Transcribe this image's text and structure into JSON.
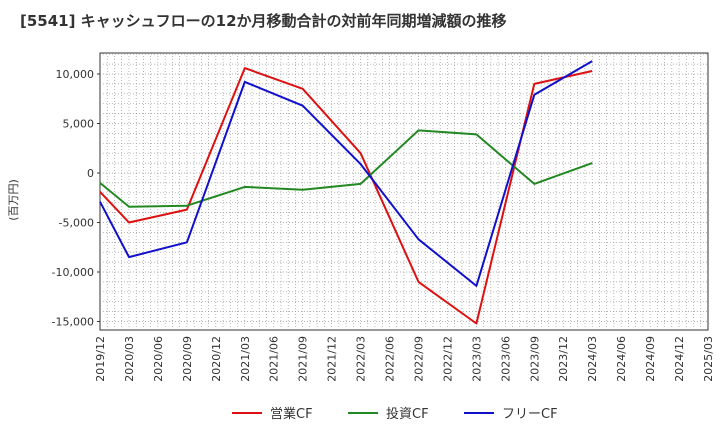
{
  "chart_data": {
    "type": "line",
    "title": "[5541]  キャッシュフローの12か月移動合計の対前年同期増減額の推移",
    "ylabel": "(百万円)",
    "xlabel": "",
    "ylim": [
      -16000,
      12000
    ],
    "grid": true,
    "legend_position": "bottom",
    "categories": [
      "2019/12",
      "2020/03",
      "2020/06",
      "2020/09",
      "2020/12",
      "2021/03",
      "2021/06",
      "2021/09",
      "2021/12",
      "2022/03",
      "2022/06",
      "2022/09",
      "2022/12",
      "2023/03",
      "2023/06",
      "2023/09",
      "2023/12",
      "2024/03",
      "2024/06",
      "2024/09",
      "2024/12",
      "2025/03"
    ],
    "y_ticks": [
      10000,
      5000,
      0,
      -5000,
      -10000,
      -15000
    ],
    "y_tick_labels": [
      "10,000",
      "5,000",
      "0",
      "-5,000",
      "-10,000",
      "-15,000"
    ],
    "series": [
      {
        "name": "営業CF",
        "color": "#dd1111",
        "values": [
          -1900,
          -5000,
          null,
          -3700,
          null,
          10600,
          null,
          8500,
          null,
          2000,
          null,
          -11000,
          null,
          -15200,
          null,
          9000,
          null,
          10300,
          null,
          null,
          null,
          null
        ]
      },
      {
        "name": "投資CF",
        "color": "#228822",
        "values": [
          -1000,
          -3400,
          null,
          -3300,
          null,
          -1400,
          null,
          -1700,
          null,
          -1100,
          null,
          4300,
          null,
          3900,
          null,
          -1100,
          null,
          1000,
          null,
          null,
          null,
          null
        ]
      },
      {
        "name": "フリーCF",
        "color": "#1111cc",
        "values": [
          -2900,
          -8500,
          null,
          -7000,
          null,
          9200,
          null,
          6800,
          null,
          900,
          null,
          -6700,
          null,
          -11400,
          null,
          7900,
          null,
          11300,
          null,
          null,
          null,
          null
        ]
      }
    ]
  }
}
